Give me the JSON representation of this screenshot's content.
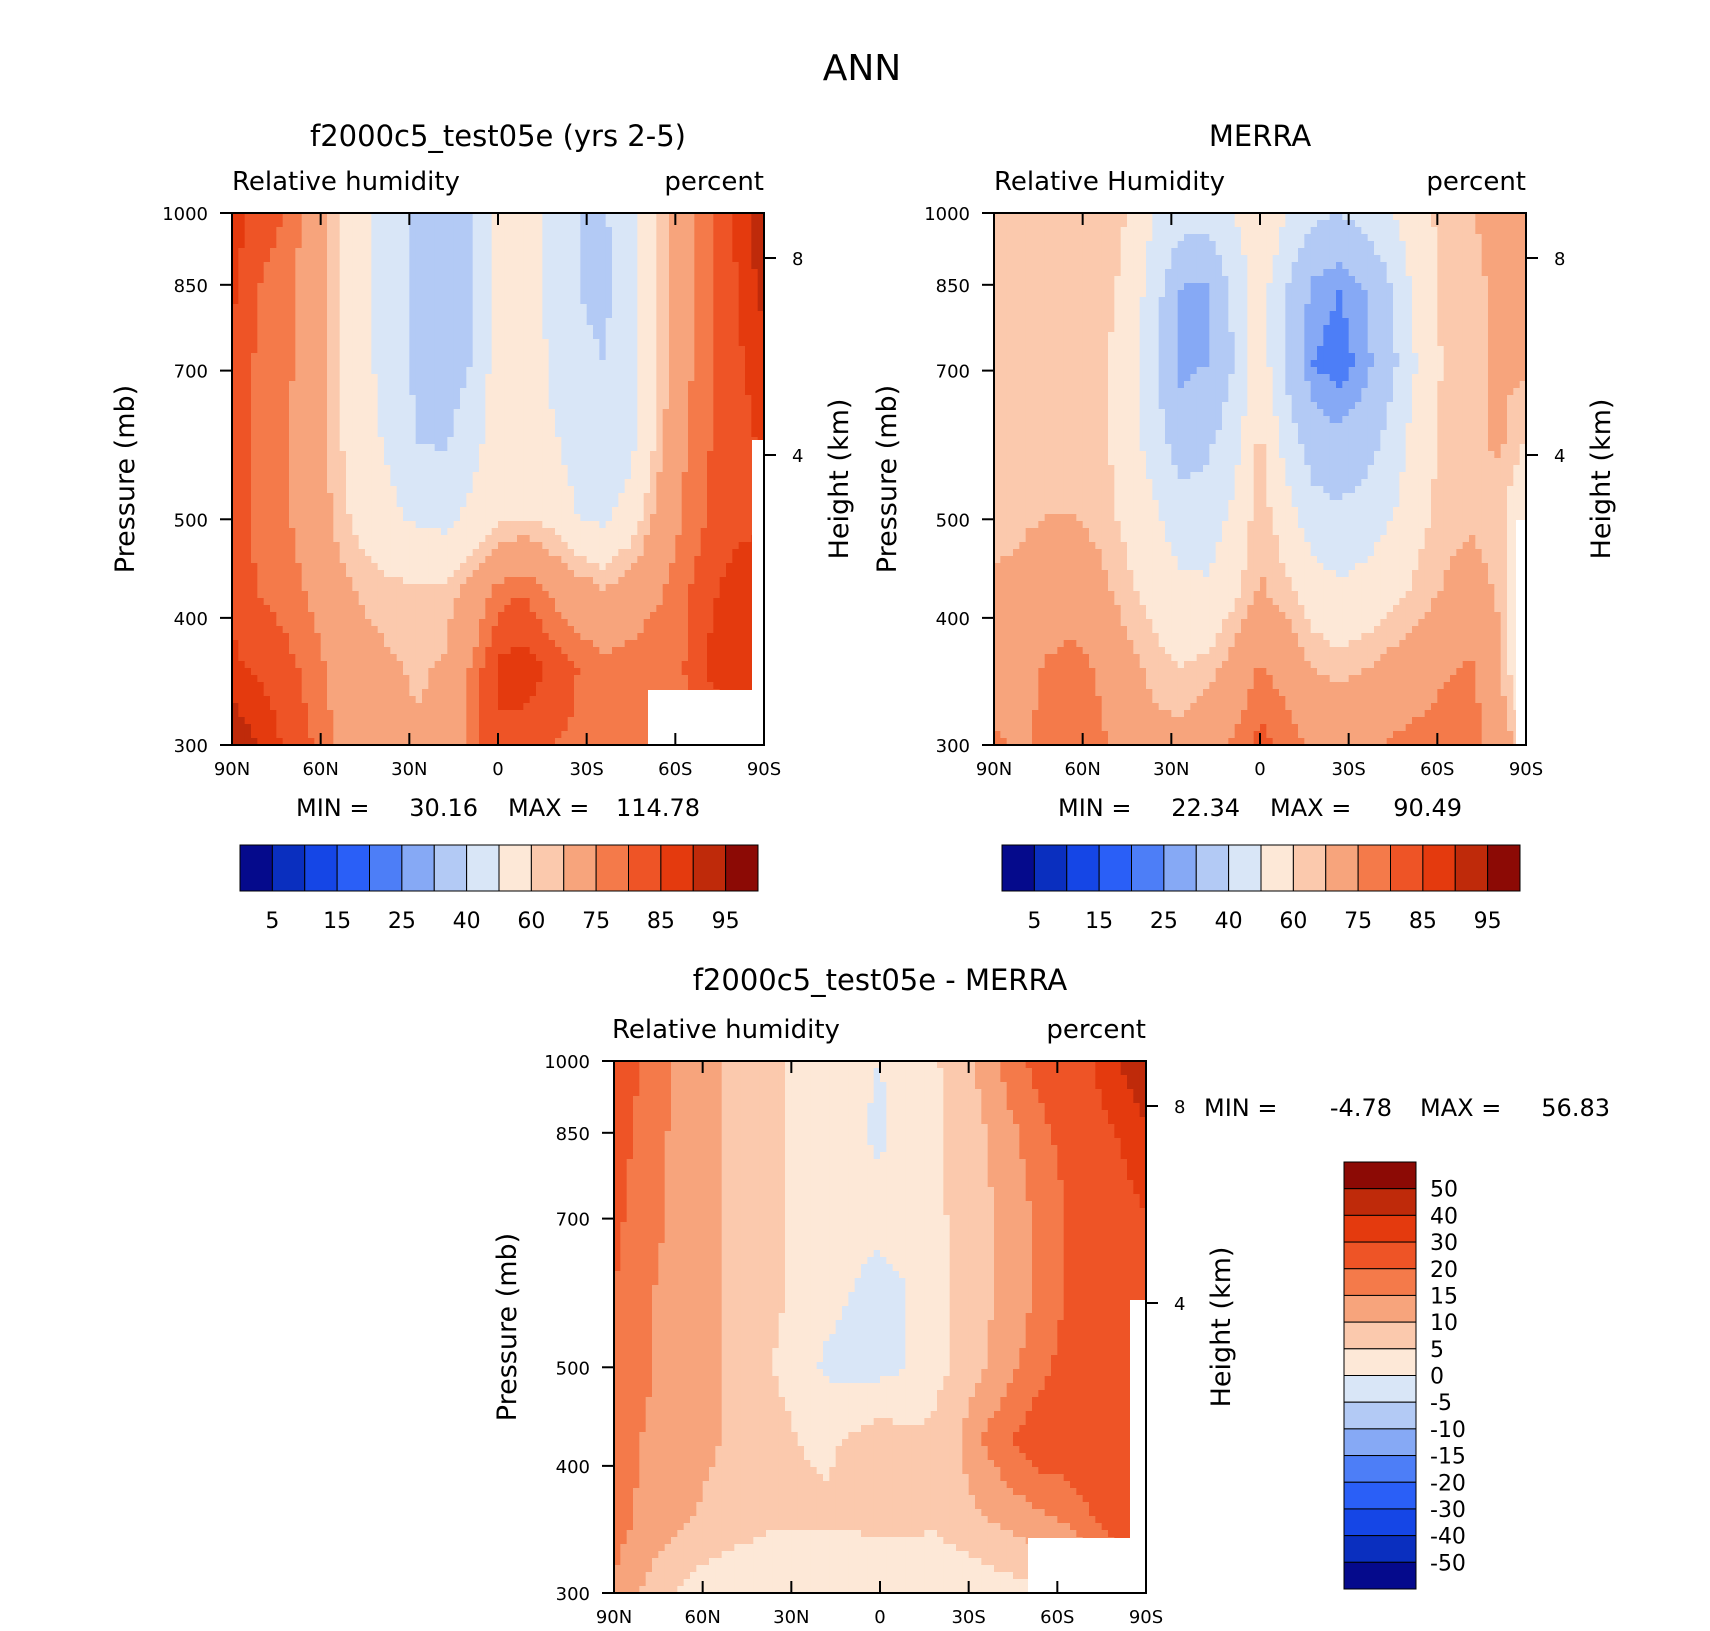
{
  "main_title": "ANN",
  "chart_data": [
    {
      "type": "heatmap",
      "id": "model",
      "title": "f2000c5_test05e (yrs 2-5)",
      "left_label": "Relative humidity",
      "right_label": "percent",
      "ylabel": "Pressure (mb)",
      "y2label": "Height (km)",
      "x_ticks": [
        "90N",
        "60N",
        "30N",
        "0",
        "30S",
        "60S",
        "90S"
      ],
      "y_ticks": [
        "300",
        "400",
        "500",
        "700",
        "850",
        "1000"
      ],
      "y_tick_values": [
        300,
        400,
        500,
        700,
        850,
        1000
      ],
      "y2_ticks": [
        "8",
        "4"
      ],
      "ylim": [
        1000,
        300
      ],
      "min_label": "MIN =",
      "min_value": "30.16",
      "max_label": "MAX =",
      "max_value": "114.78",
      "colorbar_labels": [
        "5",
        "15",
        "25",
        "40",
        "60",
        "75",
        "85",
        "95"
      ],
      "colorbar_colors": [
        "#050a8c",
        "#0a2fbf",
        "#1546e6",
        "#2a5ff7",
        "#4d7ef7",
        "#86a9f5",
        "#b3caf5",
        "#d9e6f7",
        "#fde8d7",
        "#fbc9ad",
        "#f7a47c",
        "#f47a4a",
        "#ee5426",
        "#e43a0e",
        "#bf2a0a",
        "#8c0a05"
      ],
      "field": [
        [
          88,
          82,
          80,
          72,
          60,
          52,
          45,
          36,
          35,
          38,
          52,
          60,
          46,
          40,
          39,
          46,
          60,
          72,
          80,
          86,
          95
        ],
        [
          86,
          80,
          78,
          70,
          60,
          52,
          45,
          36,
          34,
          38,
          52,
          60,
          46,
          40,
          38,
          46,
          60,
          72,
          80,
          85,
          92
        ],
        [
          84,
          79,
          77,
          70,
          60,
          52,
          46,
          37,
          36,
          40,
          55,
          60,
          48,
          42,
          40,
          46,
          60,
          73,
          80,
          84,
          88
        ],
        [
          83,
          78,
          76,
          70,
          61,
          53,
          48,
          40,
          39,
          45,
          57,
          60,
          52,
          45,
          42,
          47,
          62,
          74,
          80,
          83,
          86
        ],
        [
          83,
          78,
          76,
          71,
          63,
          56,
          52,
          48,
          47,
          53,
          58,
          60,
          57,
          50,
          48,
          55,
          67,
          76,
          81,
          83,
          85
        ],
        [
          84,
          80,
          78,
          74,
          68,
          64,
          62,
          62,
          62,
          68,
          78,
          80,
          74,
          70,
          66,
          70,
          74,
          79,
          84,
          88,
          88
        ],
        [
          86,
          84,
          82,
          78,
          72,
          68,
          66,
          64,
          66,
          76,
          86,
          88,
          84,
          80,
          77,
          78,
          80,
          80,
          86,
          88,
          88
        ],
        [
          95,
          90,
          84,
          80,
          74,
          70,
          67,
          66,
          68,
          78,
          84,
          82,
          80,
          79,
          77,
          76,
          75,
          76,
          80,
          84,
          88
        ]
      ]
    },
    {
      "type": "heatmap",
      "id": "obs",
      "title": "MERRA",
      "left_label": "Relative Humidity",
      "right_label": "percent",
      "ylabel": "Pressure (mb)",
      "y2label": "Height (km)",
      "x_ticks": [
        "90N",
        "60N",
        "30N",
        "0",
        "30S",
        "60S",
        "90S"
      ],
      "y_ticks": [
        "300",
        "400",
        "500",
        "700",
        "850",
        "1000"
      ],
      "y_tick_values": [
        300,
        400,
        500,
        700,
        850,
        1000
      ],
      "y2_ticks": [
        "8",
        "4"
      ],
      "ylim": [
        1000,
        300
      ],
      "min_label": "MIN =",
      "min_value": "22.34",
      "max_label": "MAX =",
      "max_value": "90.49",
      "colorbar_labels": [
        "5",
        "15",
        "25",
        "40",
        "60",
        "75",
        "85",
        "95"
      ],
      "colorbar_colors": [
        "#050a8c",
        "#0a2fbf",
        "#1546e6",
        "#2a5ff7",
        "#4d7ef7",
        "#86a9f5",
        "#b3caf5",
        "#d9e6f7",
        "#fde8d7",
        "#fbc9ad",
        "#f7a47c",
        "#f47a4a",
        "#ee5426",
        "#e43a0e",
        "#bf2a0a",
        "#8c0a05"
      ],
      "field": [
        [
          60,
          63,
          64,
          64,
          63,
          60,
          50,
          45,
          45,
          50,
          60,
          50,
          42,
          40,
          44,
          50,
          58,
          62,
          65,
          66,
          66
        ],
        [
          62,
          63,
          64,
          64,
          63,
          58,
          45,
          30,
          28,
          42,
          55,
          40,
          28,
          25,
          30,
          40,
          55,
          62,
          64,
          66,
          66
        ],
        [
          62,
          63,
          64,
          64,
          62,
          55,
          42,
          28,
          30,
          40,
          56,
          38,
          25,
          22,
          28,
          38,
          52,
          62,
          64,
          66,
          66
        ],
        [
          62,
          63,
          64,
          64,
          62,
          56,
          45,
          35,
          38,
          45,
          62,
          45,
          35,
          32,
          36,
          44,
          56,
          62,
          64,
          66,
          60
        ],
        [
          63,
          64,
          65,
          65,
          63,
          58,
          52,
          45,
          44,
          52,
          64,
          55,
          44,
          42,
          45,
          50,
          58,
          63,
          64,
          62,
          50
        ],
        [
          66,
          67,
          70,
          71,
          67,
          62,
          57,
          52,
          52,
          58,
          66,
          62,
          55,
          52,
          54,
          58,
          62,
          66,
          68,
          64,
          48
        ],
        [
          72,
          72,
          76,
          78,
          74,
          68,
          63,
          60,
          62,
          68,
          76,
          72,
          65,
          63,
          65,
          68,
          70,
          74,
          76,
          66,
          50
        ],
        [
          76,
          74,
          77,
          78,
          76,
          72,
          68,
          68,
          72,
          76,
          82,
          78,
          74,
          72,
          74,
          76,
          78,
          80,
          78,
          70,
          60
        ]
      ]
    },
    {
      "type": "heatmap",
      "id": "diff",
      "title": "f2000c5_test05e - MERRA",
      "left_label": "Relative humidity",
      "right_label": "percent",
      "ylabel": "Pressure (mb)",
      "y2label": "Height (km)",
      "x_ticks": [
        "90N",
        "60N",
        "30N",
        "0",
        "30S",
        "60S",
        "90S"
      ],
      "y_ticks": [
        "300",
        "400",
        "500",
        "700",
        "850",
        "1000"
      ],
      "y_tick_values": [
        300,
        400,
        500,
        700,
        850,
        1000
      ],
      "y2_ticks": [
        "8",
        "4"
      ],
      "ylim": [
        1000,
        300
      ],
      "min_label": "MIN =",
      "min_value": "-4.78",
      "max_label": "MAX =",
      "max_value": "56.83",
      "colorbar_labels": [
        "50",
        "40",
        "30",
        "20",
        "15",
        "10",
        "5",
        "0",
        "-5",
        "-10",
        "-15",
        "-20",
        "-30",
        "-40",
        "-50"
      ],
      "colorbar_colors": [
        "#8c0a05",
        "#bf2a0a",
        "#e43a0e",
        "#ee5426",
        "#f47a4a",
        "#f7a47c",
        "#fbc9ad",
        "#fde8d7",
        "#d9e6f7",
        "#b3caf5",
        "#86a9f5",
        "#4d7ef7",
        "#2a5ff7",
        "#1546e6",
        "#0a2fbf",
        "#050a8c"
      ],
      "field": [
        [
          26,
          20,
          16,
          12,
          10,
          8,
          6,
          4,
          2,
          1,
          0,
          2,
          4,
          8,
          12,
          18,
          22,
          26,
          30,
          40,
          50
        ],
        [
          24,
          18,
          15,
          12,
          10,
          8,
          6,
          4,
          2,
          1,
          -1,
          2,
          4,
          6,
          10,
          14,
          18,
          22,
          26,
          30,
          38
        ],
        [
          22,
          17,
          15,
          12,
          10,
          8,
          6,
          4,
          3,
          2,
          2,
          3,
          4,
          6,
          9,
          13,
          16,
          20,
          24,
          26,
          30
        ],
        [
          20,
          16,
          14,
          12,
          10,
          8,
          6,
          4,
          2,
          0,
          -2,
          0,
          3,
          6,
          9,
          12,
          16,
          20,
          24,
          26,
          28
        ],
        [
          20,
          16,
          14,
          12,
          10,
          8,
          5,
          2,
          -1,
          -2,
          -2,
          0,
          3,
          6,
          10,
          14,
          18,
          22,
          24,
          26,
          28
        ],
        [
          18,
          15,
          13,
          12,
          10,
          9,
          7,
          5,
          4,
          6,
          8,
          6,
          6,
          10,
          16,
          20,
          24,
          24,
          24,
          28,
          28
        ],
        [
          18,
          14,
          12,
          10,
          8,
          7,
          6,
          6,
          6,
          6,
          6,
          6,
          6,
          8,
          10,
          12,
          14,
          16,
          20,
          24,
          28
        ],
        [
          14,
          10,
          6,
          3,
          2,
          1,
          0,
          0,
          0,
          1,
          2,
          2,
          1,
          1,
          2,
          3,
          4,
          6,
          10,
          14,
          20
        ]
      ]
    }
  ]
}
